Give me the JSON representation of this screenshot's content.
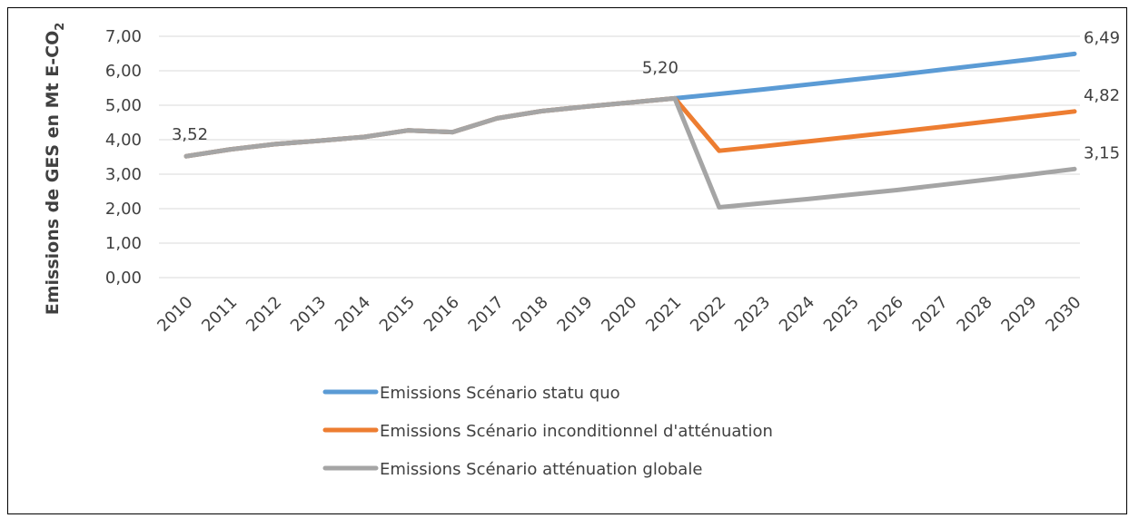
{
  "chart_data": {
    "type": "line",
    "ylabel": "Emissions de GES en Mt E-CO",
    "ylabel_subscript": "2",
    "ylim": [
      0,
      7
    ],
    "yticks": [
      "0,00",
      "1,00",
      "2,00",
      "3,00",
      "4,00",
      "5,00",
      "6,00",
      "7,00"
    ],
    "grid": true,
    "legend_position": "bottom",
    "x": [
      "2010",
      "2011",
      "2012",
      "2013",
      "2014",
      "2015",
      "2016",
      "2017",
      "2018",
      "2019",
      "2020",
      "2021",
      "2022",
      "2023",
      "2024",
      "2025",
      "2026",
      "2027",
      "2028",
      "2029",
      "2030"
    ],
    "series": [
      {
        "name": "Emissions Scénario statu quo",
        "color": "#5b9bd5",
        "values": [
          3.52,
          3.72,
          3.87,
          3.97,
          4.08,
          4.27,
          4.22,
          4.62,
          4.83,
          4.96,
          5.08,
          5.2,
          5.33,
          5.46,
          5.6,
          5.74,
          5.88,
          6.03,
          6.18,
          6.33,
          6.49
        ]
      },
      {
        "name": "Emissions Scénario inconditionnel d'atténuation",
        "color": "#ed7d31",
        "values": [
          3.52,
          3.72,
          3.87,
          3.97,
          4.08,
          4.27,
          4.22,
          4.62,
          4.83,
          4.96,
          5.08,
          5.2,
          3.68,
          3.81,
          3.95,
          4.09,
          4.23,
          4.37,
          4.52,
          4.67,
          4.82
        ]
      },
      {
        "name": "Emissions Scénario atténuation globale",
        "color": "#a5a5a5",
        "values": [
          3.52,
          3.72,
          3.87,
          3.97,
          4.08,
          4.27,
          4.22,
          4.62,
          4.83,
          4.96,
          5.08,
          5.2,
          2.04,
          2.16,
          2.28,
          2.41,
          2.54,
          2.69,
          2.84,
          2.99,
          3.15
        ]
      }
    ],
    "data_labels": [
      {
        "text": "3,52",
        "x": "2010",
        "y": 3.52
      },
      {
        "text": "5,20",
        "x": "2021",
        "y": 5.2
      },
      {
        "text": "6,49",
        "x": "2030",
        "y": 6.49
      },
      {
        "text": "4,82",
        "x": "2030",
        "y": 4.82
      },
      {
        "text": "3,15",
        "x": "2030",
        "y": 3.15
      }
    ]
  }
}
